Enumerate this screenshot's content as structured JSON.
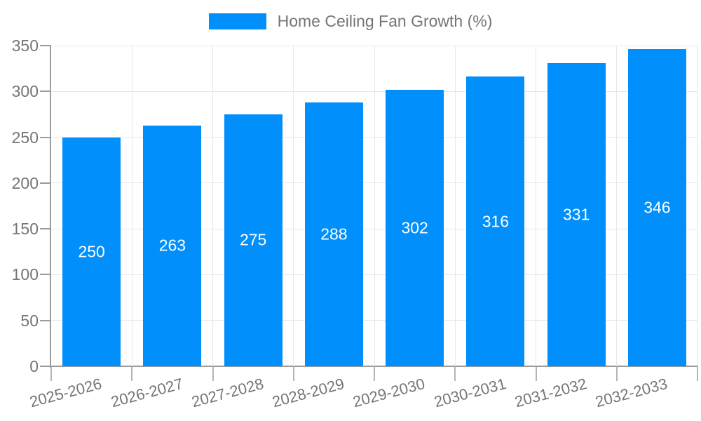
{
  "chart_data": {
    "type": "bar",
    "title": "Home Ceiling Fan Growth (%)",
    "categories": [
      "2025-2026",
      "2026-2027",
      "2027-2028",
      "2028-2029",
      "2029-2030",
      "2030-2031",
      "2031-2032",
      "2032-2033"
    ],
    "series": [
      {
        "name": "Home Ceiling Fan Growth (%)",
        "values": [
          250,
          263,
          275,
          288,
          302,
          316,
          331,
          346
        ]
      }
    ],
    "data_labels": [
      "250",
      "263",
      "275",
      "288",
      "302",
      "316",
      "331",
      "346"
    ],
    "xlabel": "",
    "ylabel": "",
    "ylim": [
      0,
      350
    ],
    "ytick_step": 50,
    "ytick_labels": [
      "0",
      "50",
      "100",
      "150",
      "200",
      "250",
      "300",
      "350"
    ],
    "grid": true,
    "legend_position": "top",
    "x_label_rotation": -15,
    "colors": {
      "bar": "#008FFB",
      "grid": "#e7e7e7",
      "axis": "#9b9b9b",
      "tick": "#b5b5b5",
      "text": "#757575",
      "datalabel": "#ffffff"
    }
  }
}
